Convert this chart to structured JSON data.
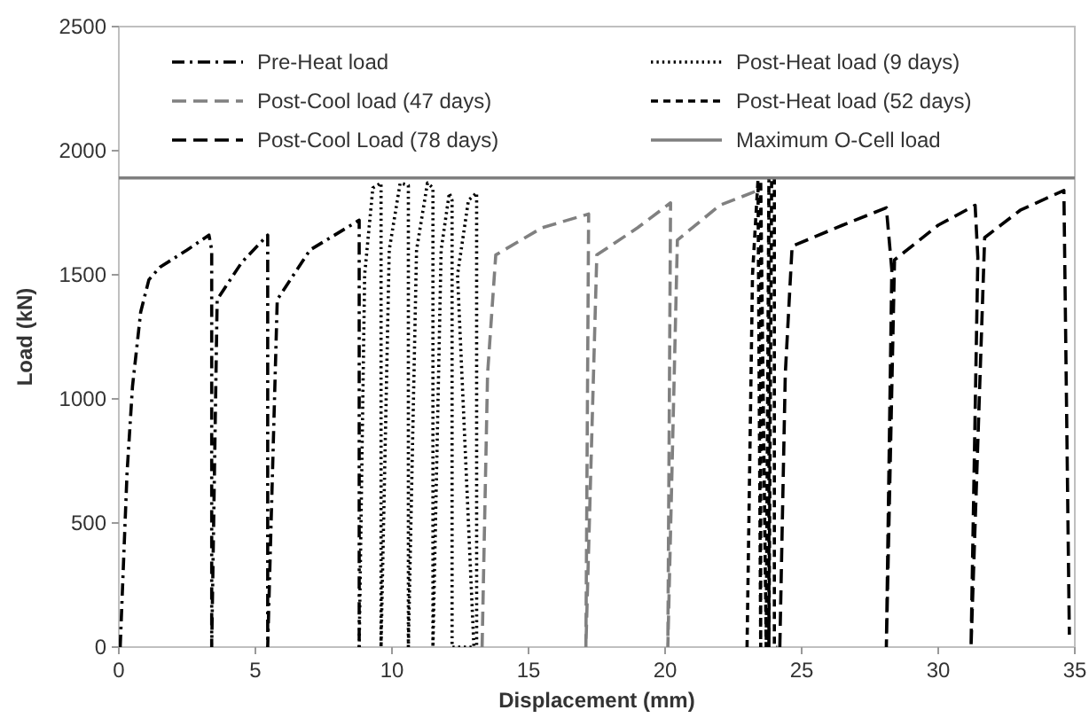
{
  "chart_data": {
    "type": "line",
    "xlabel": "Displacement (mm)",
    "ylabel": "Load (kN)",
    "xlim": [
      0,
      35
    ],
    "ylim": [
      0,
      2500
    ],
    "xticks": [
      0,
      5,
      10,
      15,
      20,
      25,
      30,
      35
    ],
    "yticks": [
      0,
      500,
      1000,
      1500,
      2000,
      2500
    ],
    "grid": false,
    "legend": "top",
    "marker": "none",
    "series": [
      {
        "name": "Pre-Heat load",
        "color": "#000000",
        "line_style": "dashdot",
        "x": [
          0.05,
          0.3,
          0.5,
          0.8,
          1.1,
          1.5,
          2.5,
          3.3,
          3.4,
          3.4,
          3.6,
          4.5,
          5.45,
          5.45,
          5.8,
          7,
          8.8,
          8.8
        ],
        "values": [
          0,
          700,
          1050,
          1350,
          1480,
          1530,
          1600,
          1660,
          1600,
          0,
          1400,
          1550,
          1660,
          0,
          1400,
          1600,
          1720,
          0
        ]
      },
      {
        "name": "Post-Heat load (9 days)",
        "color": "#000000",
        "line_style": "dotted",
        "x": [
          8.8,
          9.0,
          9.3,
          9.6,
          9.6,
          9.9,
          10.3,
          10.6,
          10.6,
          10.9,
          11.3,
          11.5,
          11.5,
          11.8,
          12.1,
          12.2,
          12.2,
          13.0,
          12.4,
          12.8,
          13.1,
          13.1
        ],
        "values": [
          0,
          1500,
          1850,
          1870,
          0,
          1600,
          1870,
          1860,
          0,
          1600,
          1870,
          1850,
          0,
          1600,
          1830,
          1800,
          0,
          0,
          1500,
          1800,
          1830,
          0
        ]
      },
      {
        "name": "Post-Cool load (47 days)",
        "color": "#808080",
        "line_style": "longdash",
        "x": [
          13.3,
          13.5,
          13.8,
          15.5,
          17.2,
          17.1,
          17.5,
          19,
          20.2,
          20.1,
          20.45,
          22,
          23.4
        ],
        "values": [
          0,
          1100,
          1580,
          1690,
          1745,
          0,
          1580,
          1690,
          1790,
          0,
          1640,
          1780,
          1840
        ]
      },
      {
        "name": "Post-Heat load (52 days)",
        "color": "#000000",
        "line_style": "dashed",
        "x": [
          23.0,
          23.2,
          23.4,
          23.5,
          23.5,
          23.7,
          23.8,
          23.8,
          23.9,
          24.0,
          24.0,
          24.1
        ],
        "values": [
          0,
          1500,
          1880,
          0,
          1880,
          0,
          1890,
          0,
          1890,
          1890,
          0,
          0
        ]
      },
      {
        "name": "Post-Cool Load (78 days)",
        "color": "#000000",
        "line_style": "longdash",
        "x": [
          24.2,
          24.4,
          24.65,
          26.5,
          28.1,
          28.3,
          28.1,
          28.4,
          30,
          31.35,
          31.45,
          31.2,
          31.7,
          33,
          34.6,
          34.8
        ],
        "values": [
          0,
          1100,
          1615,
          1700,
          1770,
          1520,
          0,
          1560,
          1700,
          1780,
          1570,
          0,
          1650,
          1760,
          1840,
          50
        ]
      },
      {
        "name": "Maximum O-Cell load",
        "color": "#7f7f7f",
        "line_style": "solid",
        "x": [
          0,
          35
        ],
        "values": [
          1890,
          1890
        ]
      }
    ]
  }
}
